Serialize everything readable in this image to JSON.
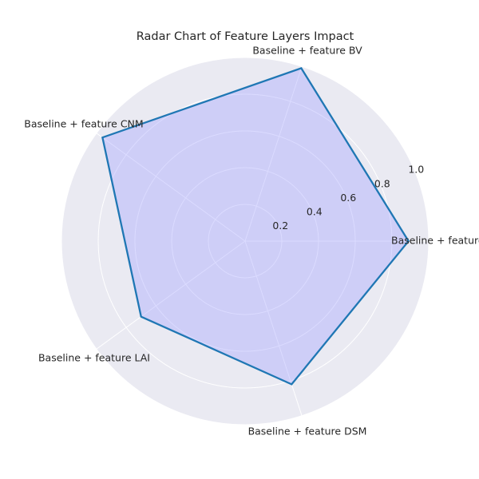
{
  "chart_data": {
    "type": "radar",
    "title": "Radar Chart of Feature Layers Impact",
    "categories": [
      "Baseline + feature SAR",
      "Baseline + feature BV",
      "Baseline + feature CNM",
      "Baseline + feature LAI",
      "Baseline + feature DSM"
    ],
    "series": [
      {
        "values": [
          0.89,
          0.99,
          0.96,
          0.7,
          0.82
        ]
      }
    ],
    "rlim": [
      0,
      1.0
    ],
    "r_ticks": [
      0.2,
      0.4,
      0.6,
      0.8,
      1.0
    ],
    "r_tick_labels": [
      "0.2",
      "0.4",
      "0.6",
      "0.8",
      "1.0"
    ],
    "grid": true,
    "colors": {
      "line": "#1f77b4",
      "fill": "#a0a0ff",
      "background": "#eaeaf2",
      "grid": "#ffffff"
    }
  }
}
